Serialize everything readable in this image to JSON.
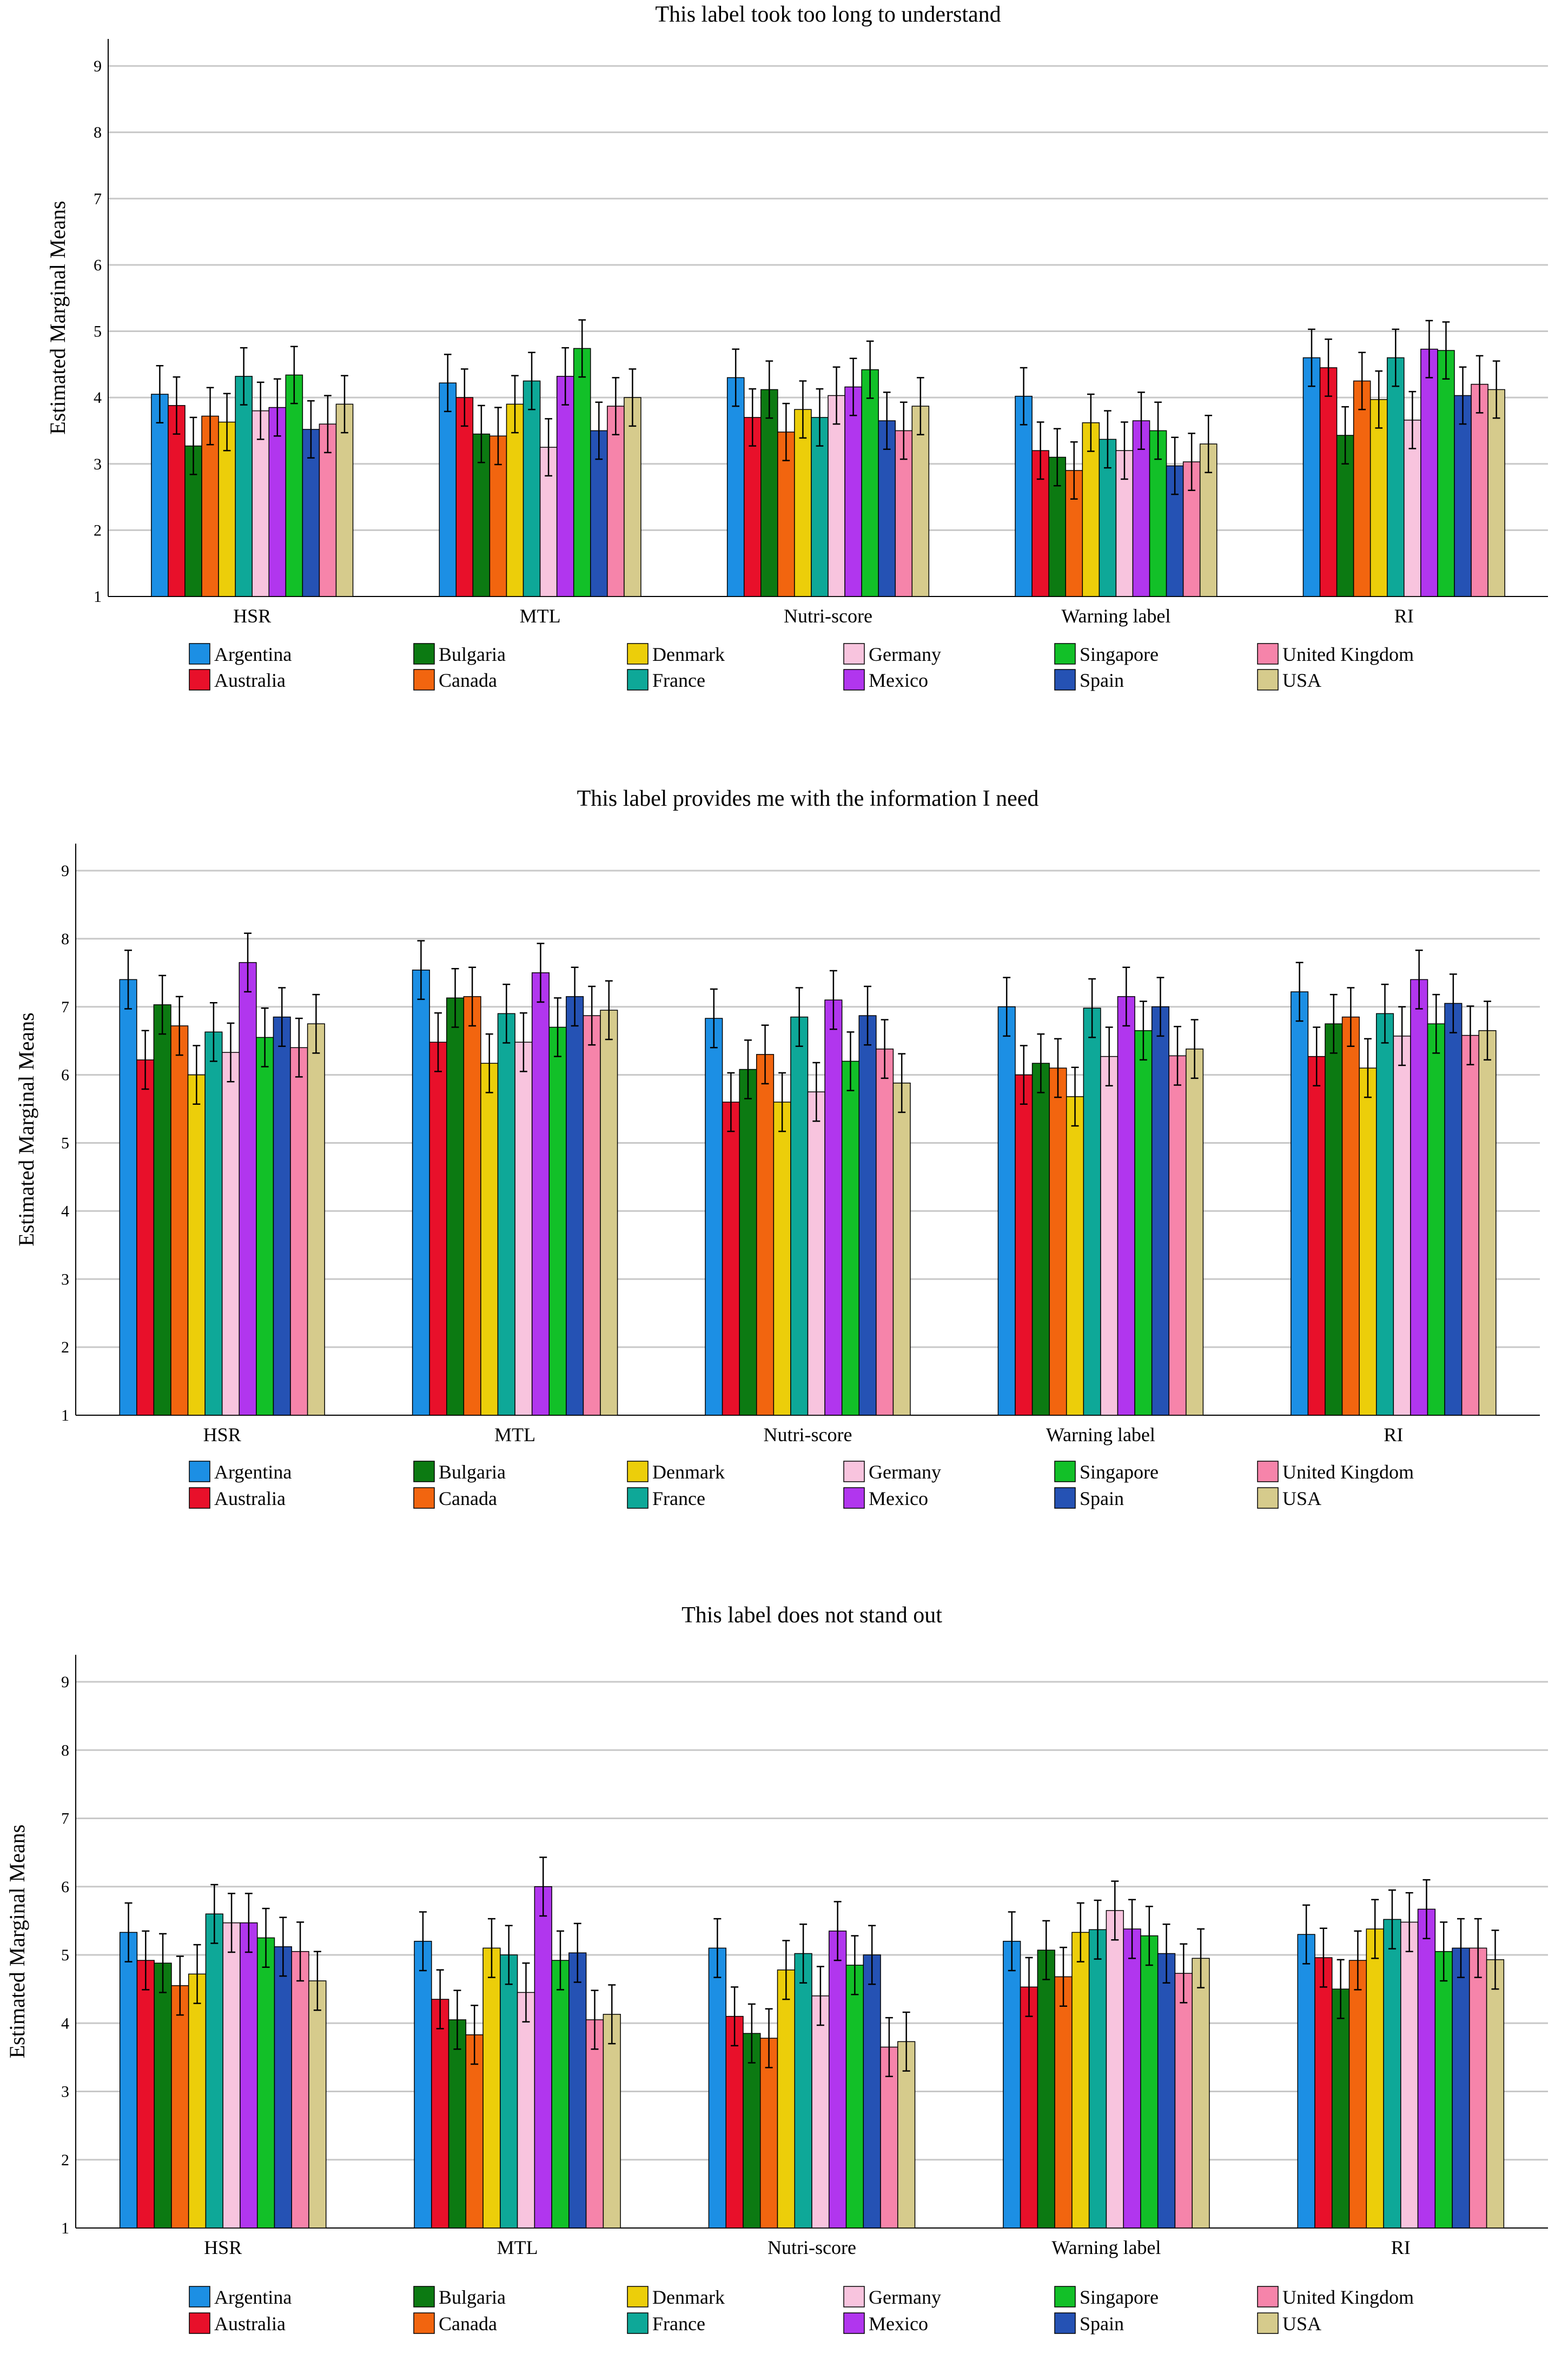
{
  "chart_data": [
    {
      "type": "bar",
      "title": "This label took too long to understand",
      "ylabel": "Estimated Marginal Means",
      "xlabel": "",
      "ylim": [
        1,
        9
      ],
      "yticks": [
        "1",
        "2",
        "3",
        "4",
        "5",
        "6",
        "7",
        "8",
        "9"
      ],
      "categories": [
        "HSR",
        "MTL",
        "Nutri-score",
        "Warning label",
        "RI"
      ],
      "series": [
        {
          "name": "Argentina",
          "values": [
            4.05,
            4.22,
            4.3,
            4.02,
            4.6
          ]
        },
        {
          "name": "Australia",
          "values": [
            3.88,
            4.0,
            3.7,
            3.2,
            4.45
          ]
        },
        {
          "name": "Bulgaria",
          "values": [
            3.27,
            3.45,
            4.12,
            3.1,
            3.43
          ]
        },
        {
          "name": "Canada",
          "values": [
            3.72,
            3.42,
            3.48,
            2.9,
            4.25
          ]
        },
        {
          "name": "Denmark",
          "values": [
            3.63,
            3.9,
            3.82,
            3.62,
            3.97
          ]
        },
        {
          "name": "France",
          "values": [
            4.32,
            4.25,
            3.7,
            3.37,
            4.6
          ]
        },
        {
          "name": "Germany",
          "values": [
            3.8,
            3.25,
            4.03,
            3.2,
            3.66
          ]
        },
        {
          "name": "Mexico",
          "values": [
            3.85,
            4.32,
            4.16,
            3.65,
            4.73
          ]
        },
        {
          "name": "Singapore",
          "values": [
            4.34,
            4.74,
            4.42,
            3.5,
            4.71
          ]
        },
        {
          "name": "Spain",
          "values": [
            3.52,
            3.5,
            3.65,
            2.97,
            4.03
          ]
        },
        {
          "name": "United Kingdom",
          "values": [
            3.6,
            3.87,
            3.5,
            3.03,
            4.2
          ]
        },
        {
          "name": "USA",
          "values": [
            3.9,
            4.0,
            3.87,
            3.3,
            4.12
          ]
        }
      ]
    },
    {
      "type": "bar",
      "title": "This label provides me with the information I need",
      "ylabel": "Estimated Marginal Means",
      "xlabel": "",
      "ylim": [
        1,
        9
      ],
      "yticks": [
        "1",
        "2",
        "3",
        "4",
        "5",
        "6",
        "7",
        "8",
        "9"
      ],
      "categories": [
        "HSR",
        "MTL",
        "Nutri-score",
        "Warning label",
        "RI"
      ],
      "series": [
        {
          "name": "Argentina",
          "values": [
            7.4,
            7.54,
            6.83,
            7.0,
            7.22
          ]
        },
        {
          "name": "Australia",
          "values": [
            6.22,
            6.48,
            5.6,
            6.0,
            6.27
          ]
        },
        {
          "name": "Bulgaria",
          "values": [
            7.03,
            7.13,
            6.08,
            6.17,
            6.75
          ]
        },
        {
          "name": "Canada",
          "values": [
            6.72,
            7.15,
            6.3,
            6.1,
            6.85
          ]
        },
        {
          "name": "Denmark",
          "values": [
            6.0,
            6.17,
            5.6,
            5.68,
            6.1
          ]
        },
        {
          "name": "France",
          "values": [
            6.63,
            6.9,
            6.85,
            6.98,
            6.9
          ]
        },
        {
          "name": "Germany",
          "values": [
            6.33,
            6.48,
            5.75,
            6.27,
            6.57
          ]
        },
        {
          "name": "Mexico",
          "values": [
            7.65,
            7.5,
            7.1,
            7.15,
            7.4
          ]
        },
        {
          "name": "Singapore",
          "values": [
            6.55,
            6.7,
            6.2,
            6.65,
            6.75
          ]
        },
        {
          "name": "Spain",
          "values": [
            6.85,
            7.15,
            6.87,
            7.0,
            7.05
          ]
        },
        {
          "name": "United Kingdom",
          "values": [
            6.4,
            6.87,
            6.38,
            6.28,
            6.58
          ]
        },
        {
          "name": "USA",
          "values": [
            6.75,
            6.95,
            5.88,
            6.38,
            6.65
          ]
        }
      ]
    },
    {
      "type": "bar",
      "title": "This label does not stand out",
      "ylabel": "Estimated Marginal Means",
      "xlabel": "",
      "ylim": [
        1,
        9
      ],
      "yticks": [
        "1",
        "2",
        "3",
        "4",
        "5",
        "6",
        "7",
        "8",
        "9"
      ],
      "categories": [
        "HSR",
        "MTL",
        "Nutri-score",
        "Warning label",
        "RI"
      ],
      "series": [
        {
          "name": "Argentina",
          "values": [
            5.33,
            5.2,
            5.1,
            5.2,
            5.3
          ]
        },
        {
          "name": "Australia",
          "values": [
            4.92,
            4.35,
            4.1,
            4.53,
            4.96
          ]
        },
        {
          "name": "Bulgaria",
          "values": [
            4.88,
            4.05,
            3.85,
            5.07,
            4.5
          ]
        },
        {
          "name": "Canada",
          "values": [
            4.55,
            3.83,
            3.78,
            4.68,
            4.92
          ]
        },
        {
          "name": "Denmark",
          "values": [
            4.72,
            5.1,
            4.78,
            5.33,
            5.38
          ]
        },
        {
          "name": "France",
          "values": [
            5.6,
            5.0,
            5.02,
            5.37,
            5.52
          ]
        },
        {
          "name": "Germany",
          "values": [
            5.47,
            4.45,
            4.4,
            5.65,
            5.48
          ]
        },
        {
          "name": "Mexico",
          "values": [
            5.47,
            6.0,
            5.35,
            5.38,
            5.67
          ]
        },
        {
          "name": "Singapore",
          "values": [
            5.25,
            4.92,
            4.85,
            5.28,
            5.05
          ]
        },
        {
          "name": "Spain",
          "values": [
            5.12,
            5.03,
            5.0,
            5.02,
            5.1
          ]
        },
        {
          "name": "United Kingdom",
          "values": [
            5.05,
            4.05,
            3.65,
            4.73,
            5.1
          ]
        },
        {
          "name": "USA",
          "values": [
            4.62,
            4.13,
            3.73,
            4.95,
            4.93
          ]
        }
      ]
    }
  ],
  "legend": {
    "entries": [
      "Argentina",
      "Australia",
      "Bulgaria",
      "Canada",
      "Denmark",
      "France",
      "Germany",
      "Mexico",
      "Singapore",
      "Spain",
      "United Kingdom",
      "USA"
    ],
    "colors": {
      "Argentina": "#1c8fe4",
      "Australia": "#e8102a",
      "Bulgaria": "#0c7a12",
      "Canada": "#f2650f",
      "Denmark": "#ecce0a",
      "France": "#0ea898",
      "Germany": "#f8c4de",
      "Mexico": "#b136ee",
      "Singapore": "#12c028",
      "Spain": "#2552b4",
      "United Kingdom": "#f684aa",
      "USA": "#d6cb8c"
    }
  },
  "error_bar_halfwidth": 0.43
}
